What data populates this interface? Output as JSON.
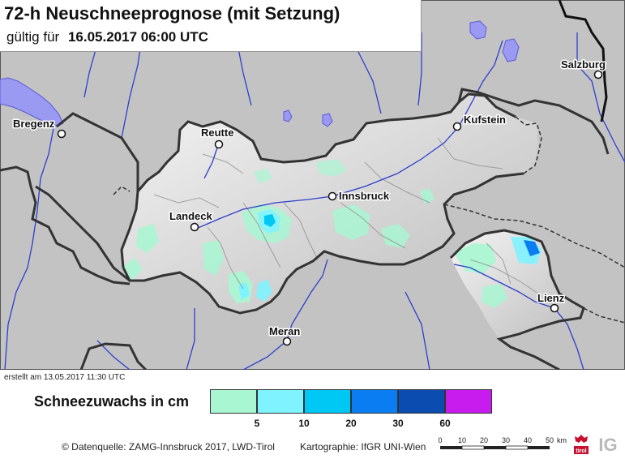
{
  "header": {
    "title": "72-h Neuschneeprognose (mit Setzung)",
    "validity_prefix": "gültig für",
    "validity_date": "16.05.2017 06:00 UTC"
  },
  "map": {
    "cities": [
      {
        "id": "bregenz",
        "label": "Bregenz"
      },
      {
        "id": "reutte",
        "label": "Reutte"
      },
      {
        "id": "kufstein",
        "label": "Kufstein"
      },
      {
        "id": "salzburg",
        "label": "Salzburg"
      },
      {
        "id": "innsbruck",
        "label": "Innsbruck"
      },
      {
        "id": "landeck",
        "label": "Landeck"
      },
      {
        "id": "lienz",
        "label": "Lienz"
      },
      {
        "id": "meran",
        "label": "Meran"
      }
    ]
  },
  "meta": {
    "created": "erstellt am 13.05.2017 11:30 UTC"
  },
  "legend": {
    "title": "Schneezuwachs in cm",
    "classes": [
      {
        "color": "#a8f7d2"
      },
      {
        "color": "#7ff3ff"
      },
      {
        "color": "#00c8f4"
      },
      {
        "color": "#0a7df2"
      },
      {
        "color": "#0b4cb0"
      },
      {
        "color": "#c81cef"
      }
    ],
    "ticks": [
      "5",
      "10",
      "20",
      "30",
      "60"
    ]
  },
  "footer": {
    "source": "© Datenquelle: ZAMG-Innsbruck 2017, LWD-Tirol",
    "cartography": "Kartographie: IfGR UNI-Wien"
  },
  "scalebar": {
    "labels": [
      "0",
      "10",
      "20",
      "30",
      "40",
      "50"
    ],
    "unit": "km"
  },
  "logos": {
    "tirol_text": "tirol",
    "ig_text": "IG"
  }
}
